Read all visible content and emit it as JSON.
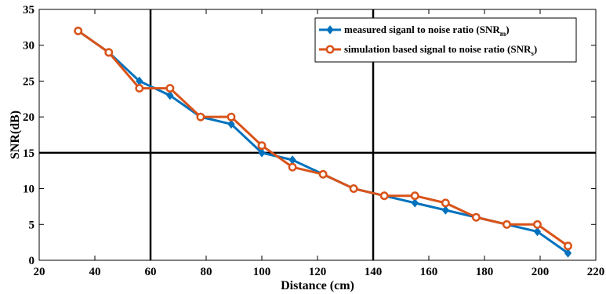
{
  "chart_data": {
    "type": "line",
    "title": "",
    "xlabel": "Distance (cm)",
    "ylabel": "SNR(dB)",
    "xlim": [
      20,
      220
    ],
    "ylim": [
      0,
      35
    ],
    "xticks": [
      20,
      40,
      60,
      80,
      100,
      120,
      140,
      160,
      180,
      200,
      220
    ],
    "yticks": [
      0,
      5,
      10,
      15,
      20,
      25,
      30,
      35
    ],
    "grid": "major lines at x=60, x=140 and y=15",
    "legend_position": "top-right",
    "x": [
      34,
      45,
      56,
      67,
      78,
      89,
      100,
      111,
      122,
      133,
      144,
      155,
      166,
      177,
      188,
      199,
      210
    ],
    "series": [
      {
        "name": "measured siganl to noise ratio (SNR",
        "name_sub": "m",
        "name_suffix": ")",
        "color": "#0072BD",
        "marker": "diamond",
        "values": [
          32,
          29,
          25,
          23,
          20,
          19,
          15,
          14,
          12,
          10,
          9,
          8,
          7,
          6,
          5,
          4,
          1
        ]
      },
      {
        "name": "simulation based signal to noise ratio (SNR",
        "name_sub": "s",
        "name_suffix": ")",
        "color": "#D95319",
        "marker": "circle",
        "values": [
          32,
          29,
          24,
          24,
          20,
          20,
          16,
          13,
          12,
          10,
          9,
          9,
          8,
          6,
          5,
          5,
          2
        ]
      }
    ]
  }
}
